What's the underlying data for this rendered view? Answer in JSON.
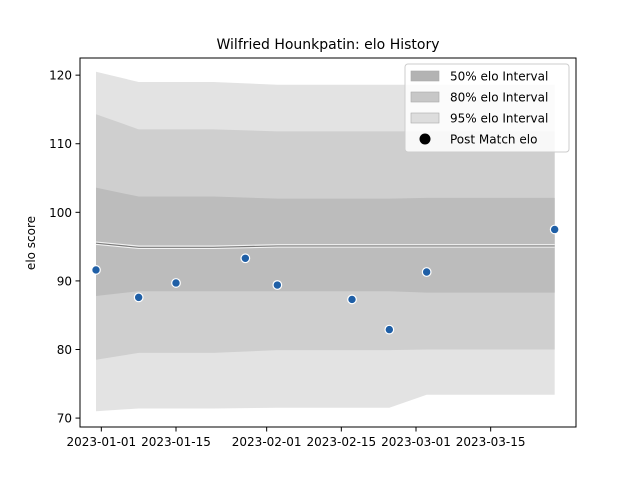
{
  "chart_data": {
    "type": "line",
    "title": "Wilfried Hounkpatin: elo History",
    "ylabel": "elo score",
    "xlabel": "",
    "x_is_date": true,
    "xlim": [
      "2022-12-28",
      "2023-03-31"
    ],
    "ylim": [
      68.7,
      122.5
    ],
    "x_ticks": [
      "2023-01-01",
      "2023-01-15",
      "2023-02-01",
      "2023-02-15",
      "2023-03-01",
      "2023-03-15"
    ],
    "y_ticks": [
      70,
      80,
      90,
      100,
      110,
      120
    ],
    "grid": false,
    "legend_position": "top-right",
    "interval_dates": [
      "2022-12-31",
      "2023-01-08",
      "2023-01-15",
      "2023-01-22",
      "2023-02-03",
      "2023-02-17",
      "2023-02-24",
      "2023-03-03",
      "2023-03-27"
    ],
    "mean": [
      95.5,
      94.9,
      94.9,
      94.9,
      95.1,
      95.1,
      95.1,
      95.1,
      95.1
    ],
    "intervals": [
      {
        "name": "95% elo Interval",
        "color": "#e3e3e3",
        "low": [
          71.0,
          71.4,
          71.4,
          71.4,
          71.5,
          71.5,
          71.5,
          73.4,
          73.4
        ],
        "high": [
          120.5,
          119.0,
          119.0,
          119.0,
          118.6,
          118.6,
          118.6,
          118.6,
          118.6
        ]
      },
      {
        "name": "80% elo Interval",
        "color": "#cfcfcf",
        "low": [
          78.5,
          79.5,
          79.5,
          79.5,
          79.9,
          79.9,
          79.9,
          80.0,
          80.0
        ],
        "high": [
          114.3,
          112.1,
          112.1,
          112.1,
          111.8,
          111.8,
          111.8,
          111.8,
          111.8
        ]
      },
      {
        "name": "50% elo Interval",
        "color": "#bcbcbc",
        "low": [
          87.8,
          88.5,
          88.5,
          88.5,
          88.5,
          88.5,
          88.5,
          88.3,
          88.3
        ],
        "high": [
          103.6,
          102.3,
          102.3,
          102.3,
          102.0,
          102.0,
          102.0,
          102.1,
          102.1
        ]
      }
    ],
    "points": {
      "name": "Post Match elo",
      "color": "#1f5fa6",
      "x": [
        "2022-12-31",
        "2023-01-08",
        "2023-01-15",
        "2023-01-28",
        "2023-02-03",
        "2023-02-17",
        "2023-02-24",
        "2023-03-03",
        "2023-03-27"
      ],
      "y": [
        91.6,
        87.6,
        89.7,
        93.3,
        89.4,
        87.3,
        82.9,
        91.3,
        97.5
      ]
    },
    "legend": [
      {
        "label": "50% elo Interval",
        "kind": "patch",
        "color": "#b3b3b3"
      },
      {
        "label": "80% elo Interval",
        "kind": "patch",
        "color": "#c7c7c7"
      },
      {
        "label": "95% elo Interval",
        "kind": "patch",
        "color": "#dddddd"
      },
      {
        "label": "Post Match elo",
        "kind": "marker",
        "color": "#000000"
      }
    ]
  }
}
